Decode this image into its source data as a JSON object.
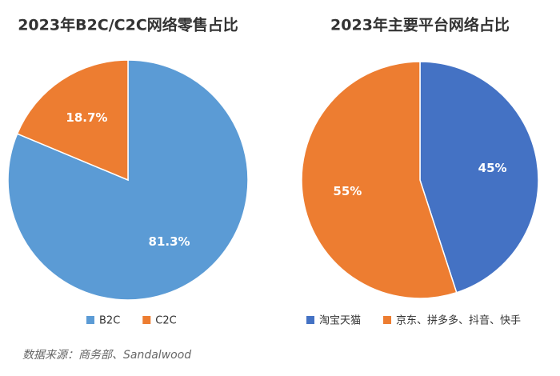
{
  "chart_data": [
    {
      "type": "pie",
      "title": "2023年B2C/C2C网络零售占比",
      "categories": [
        "B2C",
        "C2C"
      ],
      "values": [
        81.3,
        18.7
      ],
      "value_labels": [
        "81.3%",
        "18.7%"
      ],
      "colors": [
        "#5b9bd5",
        "#ed7d31"
      ]
    },
    {
      "type": "pie",
      "title": "2023年主要平台网络占比",
      "categories": [
        "淘宝天猫",
        "京东、拼多多、抖音、快手"
      ],
      "values": [
        45,
        55
      ],
      "value_labels": [
        "45%",
        "55%"
      ],
      "colors": [
        "#4472c4",
        "#ed7d31"
      ]
    }
  ],
  "source": "数据来源：商务部、Sandalwood"
}
